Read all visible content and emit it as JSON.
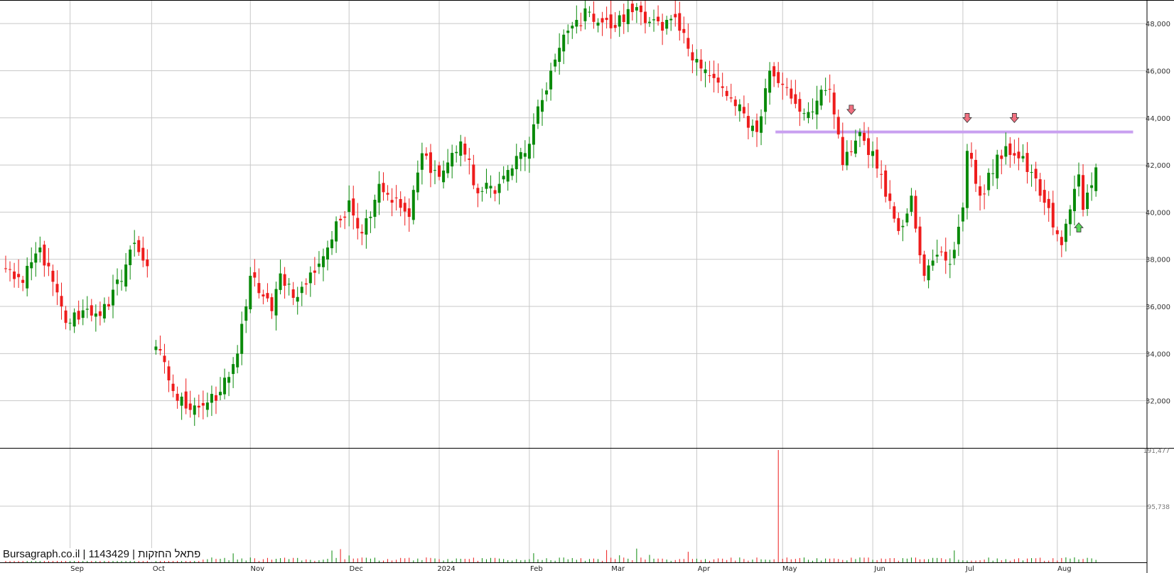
{
  "watermark": "Bursagraph.co.il | 1143429 | פתאל החזקות",
  "chart_data": {
    "type": "candlestick",
    "price_axis": {
      "ylim": [
        30000,
        49000
      ],
      "ticks": [
        32000,
        34000,
        36000,
        38000,
        40000,
        42000,
        44000,
        46000,
        48000
      ],
      "tick_labels": [
        "32,000",
        "34,000",
        "36,000",
        "38,000",
        "40,000",
        "42,000",
        "44,000",
        "46,000",
        "48,000"
      ]
    },
    "volume_axis": {
      "ylim": [
        0,
        191477
      ],
      "ticks": [
        95738,
        191477
      ],
      "tick_labels": [
        "95,738",
        "191,477"
      ]
    },
    "x_axis": {
      "labels": [
        "Sep",
        "Oct",
        "Nov",
        "Dec",
        "2024",
        "Feb",
        "Mar",
        "Apr",
        "May",
        "Jun",
        "Jul",
        "Aug"
      ],
      "label_index": [
        15,
        34,
        57,
        80,
        101,
        122,
        141,
        161,
        181,
        202,
        223,
        245
      ]
    },
    "grid": true,
    "up_color": "#0a8a0a",
    "down_color": "#ee1c1c",
    "resistance_color": "#c9a0f0",
    "resistance_level": 43400,
    "resistance_from_index": 180,
    "resistance_to_index": 262,
    "markers": [
      {
        "type": "sell-arrow",
        "index": 197,
        "price": 44300,
        "color": "#f07080"
      },
      {
        "type": "sell-arrow",
        "index": 224,
        "price": 43950,
        "color": "#f07080"
      },
      {
        "type": "sell-arrow",
        "index": 235,
        "price": 43950,
        "color": "#f07080"
      },
      {
        "type": "buy-arrow",
        "index": 250,
        "price": 39400,
        "color": "#5ad65a"
      }
    ],
    "ohlc_anchor_points": [
      {
        "i": 0,
        "close": 37600
      },
      {
        "i": 4,
        "close": 37000
      },
      {
        "i": 8,
        "close": 38500
      },
      {
        "i": 14,
        "close": 35300
      },
      {
        "i": 19,
        "close": 35900
      },
      {
        "i": 21,
        "close": 35700
      },
      {
        "i": 24,
        "close": 36000
      },
      {
        "i": 30,
        "close": 38700
      },
      {
        "i": 34,
        "close": 37500
      },
      {
        "i": 35,
        "close": 34300
      },
      {
        "i": 40,
        "close": 32000
      },
      {
        "i": 44,
        "close": 31800
      },
      {
        "i": 49,
        "close": 32000
      },
      {
        "i": 54,
        "close": 34000
      },
      {
        "i": 56,
        "close": 36000
      },
      {
        "i": 57,
        "close": 37300
      },
      {
        "i": 62,
        "close": 35800
      },
      {
        "i": 64,
        "close": 37400
      },
      {
        "i": 68,
        "close": 36400
      },
      {
        "i": 75,
        "close": 38500
      },
      {
        "i": 80,
        "close": 40500
      },
      {
        "i": 83,
        "close": 39100
      },
      {
        "i": 87,
        "close": 41200
      },
      {
        "i": 94,
        "close": 39800
      },
      {
        "i": 97,
        "close": 42500
      },
      {
        "i": 101,
        "close": 41500
      },
      {
        "i": 106,
        "close": 43000
      },
      {
        "i": 110,
        "close": 40800
      },
      {
        "i": 115,
        "close": 41200
      },
      {
        "i": 122,
        "close": 42900
      },
      {
        "i": 127,
        "close": 46000
      },
      {
        "i": 131,
        "close": 47700
      },
      {
        "i": 136,
        "close": 48500
      },
      {
        "i": 141,
        "close": 47800
      },
      {
        "i": 147,
        "close": 48700
      },
      {
        "i": 153,
        "close": 47700
      },
      {
        "i": 155,
        "close": 48200
      },
      {
        "i": 161,
        "close": 46500
      },
      {
        "i": 164,
        "close": 45800
      },
      {
        "i": 170,
        "close": 44500
      },
      {
        "i": 175,
        "close": 43400
      },
      {
        "i": 178,
        "close": 46000
      },
      {
        "i": 181,
        "close": 45400
      },
      {
        "i": 186,
        "close": 44200
      },
      {
        "i": 192,
        "close": 45200
      },
      {
        "i": 195,
        "close": 42000
      },
      {
        "i": 199,
        "close": 43400
      },
      {
        "i": 204,
        "close": 41600
      },
      {
        "i": 208,
        "close": 39200
      },
      {
        "i": 211,
        "close": 40700
      },
      {
        "i": 214,
        "close": 37300
      },
      {
        "i": 218,
        "close": 38300
      },
      {
        "i": 220,
        "close": 37800
      },
      {
        "i": 223,
        "close": 40200
      },
      {
        "i": 224,
        "close": 42600
      },
      {
        "i": 227,
        "close": 40700
      },
      {
        "i": 233,
        "close": 42800
      },
      {
        "i": 235,
        "close": 42400
      },
      {
        "i": 239,
        "close": 41700
      },
      {
        "i": 242,
        "close": 40400
      },
      {
        "i": 246,
        "close": 38600
      },
      {
        "i": 250,
        "close": 41600
      },
      {
        "i": 251,
        "close": 40100
      },
      {
        "i": 254,
        "close": 41900
      }
    ],
    "volume_spike": {
      "index": 180,
      "volume": 191477
    }
  }
}
